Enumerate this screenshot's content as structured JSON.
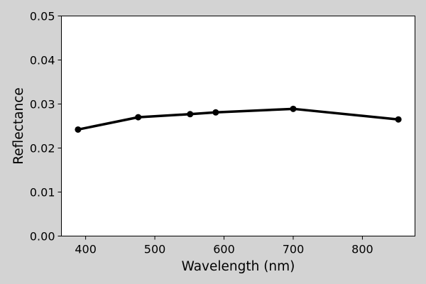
{
  "chart_data": {
    "type": "line",
    "title": "",
    "xlabel": "Wavelength (nm)",
    "ylabel": "Reflectance",
    "xlim": [
      365,
      876
    ],
    "ylim": [
      0.0,
      0.05
    ],
    "xticks": [
      "400",
      "500",
      "600",
      "700",
      "800"
    ],
    "yticks": [
      "0.00",
      "0.01",
      "0.02",
      "0.03",
      "0.04",
      "0.05"
    ],
    "grid": false,
    "legend": "none",
    "series": [
      {
        "x": [
          389,
          476,
          551,
          588,
          700,
          852
        ],
        "y": [
          0.0242,
          0.027,
          0.0277,
          0.0281,
          0.0289,
          0.0265
        ],
        "color": "#000000",
        "marker": "circle"
      }
    ]
  },
  "colors": {
    "background": "#d3d3d3",
    "plot_area": "#ffffff",
    "line": "#000000"
  }
}
